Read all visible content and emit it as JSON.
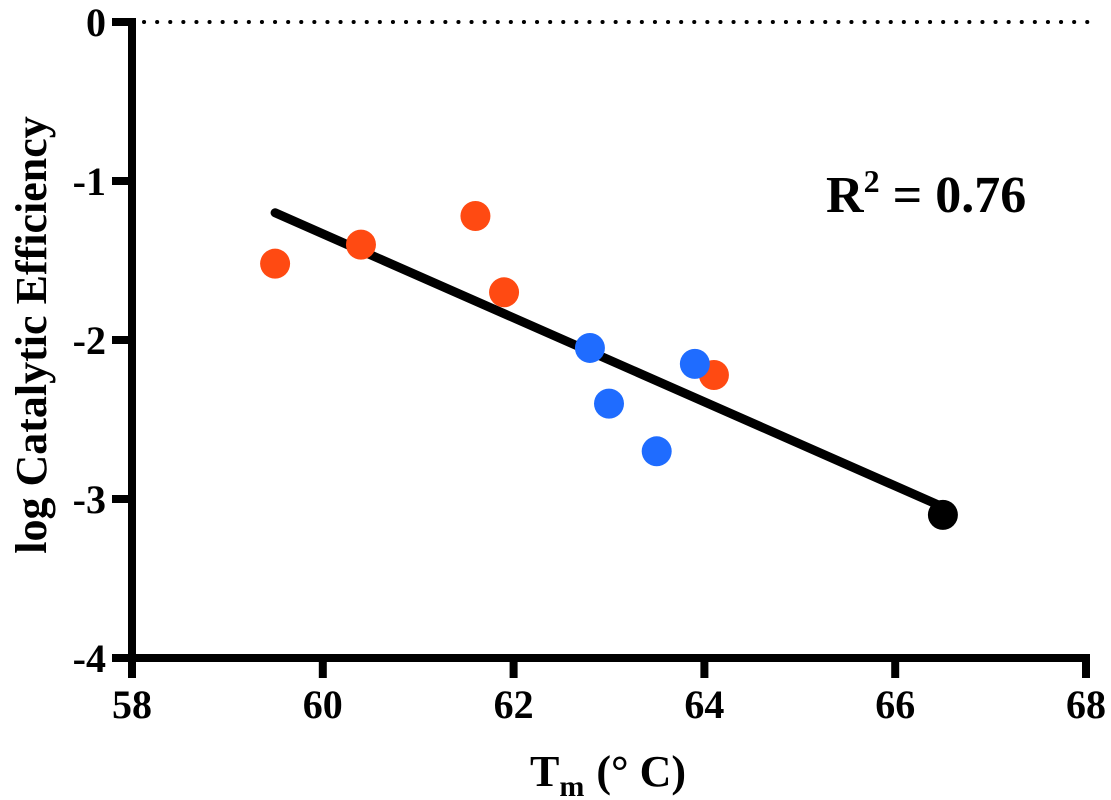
{
  "chart_data": {
    "type": "scatter",
    "xlabel": "T",
    "xlabel_subscript": "m",
    "xlabel_unit": "(° C)",
    "ylabel": "log Catalytic Efficiency",
    "xlim": [
      58,
      68
    ],
    "ylim": [
      -4,
      0
    ],
    "x_ticks": [
      58,
      60,
      62,
      64,
      66,
      68
    ],
    "y_ticks": [
      0,
      -1,
      -2,
      -3,
      -4
    ],
    "reference_line": {
      "y": 0,
      "style": "dotted"
    },
    "annotation": {
      "prefix": "R",
      "superscript": "2",
      "suffix": " = 0.76",
      "position": "upper-right"
    },
    "fit_line": {
      "x": [
        59.5,
        66.5
      ],
      "y": [
        -1.2,
        -3.05
      ]
    },
    "series": [
      {
        "color": "#ff4a12",
        "points": [
          {
            "x": 59.5,
            "y": -1.52
          },
          {
            "x": 60.4,
            "y": -1.4
          },
          {
            "x": 61.6,
            "y": -1.22
          },
          {
            "x": 61.9,
            "y": -1.7
          },
          {
            "x": 64.1,
            "y": -2.22
          }
        ]
      },
      {
        "color": "#1f6cff",
        "points": [
          {
            "x": 62.8,
            "y": -2.05
          },
          {
            "x": 63.0,
            "y": -2.4
          },
          {
            "x": 63.5,
            "y": -2.7
          },
          {
            "x": 63.9,
            "y": -2.15
          }
        ]
      },
      {
        "color": "#000000",
        "points": [
          {
            "x": 66.5,
            "y": -3.1
          }
        ]
      }
    ]
  }
}
